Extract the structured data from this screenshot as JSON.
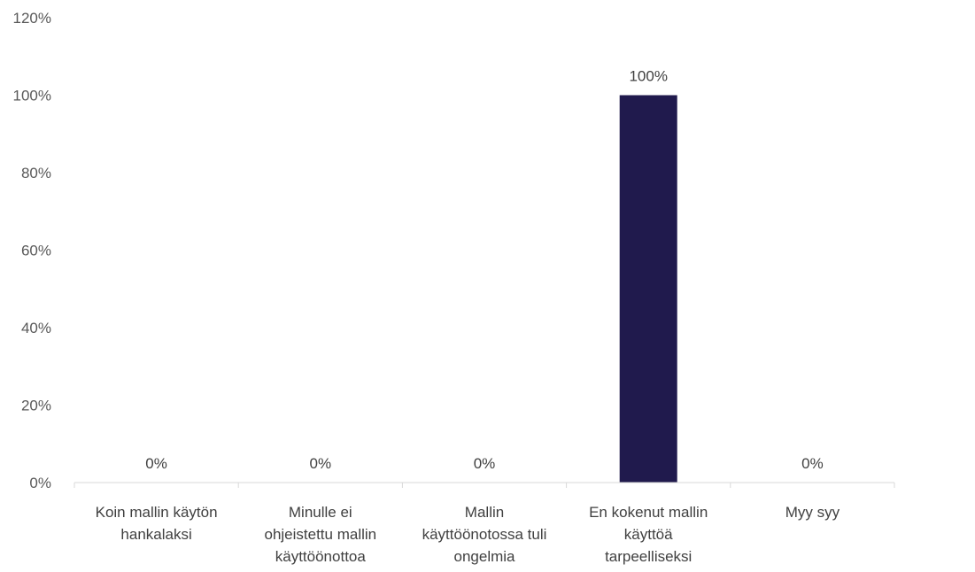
{
  "chart_data": {
    "type": "bar",
    "categories": [
      [
        "Koin mallin käytön",
        "hankalaksi"
      ],
      [
        "Minulle ei",
        "ohjeistettu mallin",
        "käyttöönottoa"
      ],
      [
        "Mallin",
        "käyttöönotossa tuli",
        "ongelmia"
      ],
      [
        "En kokenut mallin",
        "käyttöä",
        "tarpeelliseksi"
      ],
      [
        "Myy syy"
      ]
    ],
    "values": [
      0,
      0,
      0,
      100,
      0
    ],
    "data_labels": [
      "0%",
      "0%",
      "0%",
      "100%",
      "0%"
    ],
    "ylim": [
      0,
      120
    ],
    "y_ticks": [
      0,
      20,
      40,
      60,
      80,
      100,
      120
    ],
    "y_tick_labels": [
      "0%",
      "20%",
      "40%",
      "60%",
      "80%",
      "100%",
      "120%"
    ],
    "bar_color": "#201a4d",
    "axis_color": "#d9d9d9",
    "grid": false,
    "legend": "none"
  }
}
